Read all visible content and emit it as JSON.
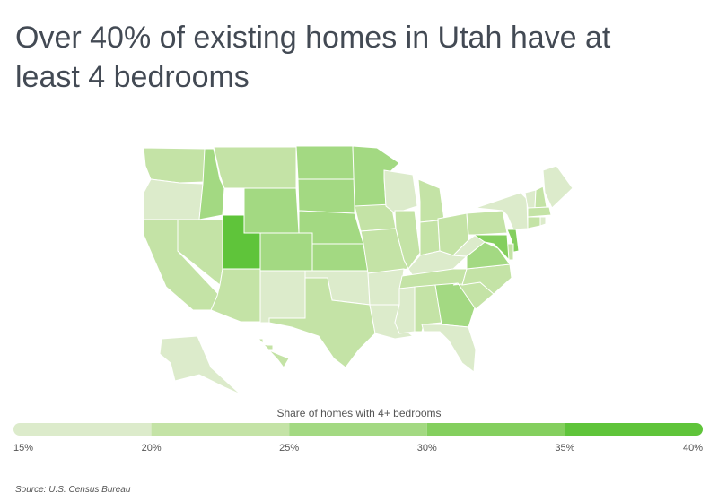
{
  "chart_data": {
    "type": "choropleth",
    "title": "Over 40% of existing homes in Utah have at least 4 bedrooms",
    "legend_title": "Share of homes with 4+ bedrooms",
    "source": "Source: U.S. Census Bureau",
    "values": [
      22,
      18,
      21,
      22,
      28,
      23,
      27,
      41,
      22,
      27,
      18,
      27,
      27,
      28,
      27,
      19,
      23,
      28,
      24,
      22,
      19,
      19,
      19,
      23,
      24,
      24,
      21,
      19,
      21,
      19,
      22,
      29,
      19,
      23,
      22,
      29,
      18,
      21,
      17,
      18,
      19,
      23,
      22,
      24,
      19,
      30,
      24,
      32,
      19,
      22
    ],
    "colors": [
      "#dcebcb",
      "#c4e3a6",
      "#a3d982",
      "#84cf5e",
      "#5fc43a"
    ],
    "clim": [
      15,
      40
    ],
    "cticks": [
      {
        "value": 15,
        "label": "15%"
      },
      {
        "value": 20,
        "label": "20%"
      },
      {
        "value": 25,
        "label": "25%"
      },
      {
        "value": 30,
        "label": "30%"
      },
      {
        "value": 35,
        "label": "35%"
      },
      {
        "value": 40,
        "label": "40%"
      }
    ]
  }
}
